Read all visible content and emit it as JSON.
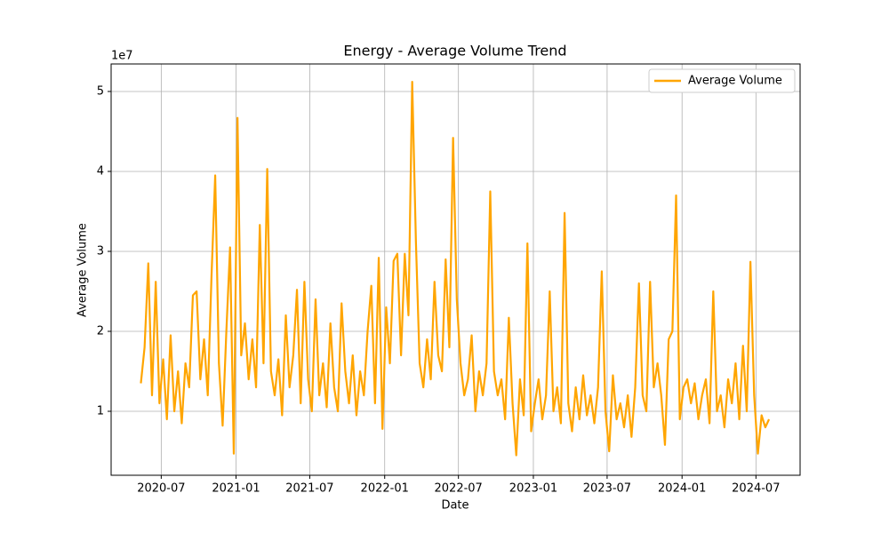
{
  "chart_data": {
    "type": "line",
    "title": "Energy - Average Volume Trend",
    "x_label": "Date",
    "y_label": "Average Volume",
    "y_scale_label": "1e7",
    "x": [
      2020.36,
      2020.385,
      2020.41,
      2020.435,
      2020.46,
      2020.485,
      2020.51,
      2020.535,
      2020.56,
      2020.585,
      2020.61,
      2020.635,
      2020.66,
      2020.685,
      2020.71,
      2020.735,
      2020.76,
      2020.785,
      2020.81,
      2020.835,
      2020.86,
      2020.885,
      2020.91,
      2020.935,
      2020.96,
      2020.985,
      2021.01,
      2021.035,
      2021.06,
      2021.085,
      2021.11,
      2021.135,
      2021.16,
      2021.185,
      2021.21,
      2021.235,
      2021.26,
      2021.285,
      2021.31,
      2021.335,
      2021.36,
      2021.385,
      2021.41,
      2021.435,
      2021.46,
      2021.485,
      2021.51,
      2021.535,
      2021.56,
      2021.585,
      2021.61,
      2021.635,
      2021.66,
      2021.685,
      2021.71,
      2021.735,
      2021.76,
      2021.785,
      2021.81,
      2021.835,
      2021.86,
      2021.885,
      2021.91,
      2021.935,
      2021.96,
      2021.985,
      2022.01,
      2022.035,
      2022.06,
      2022.085,
      2022.11,
      2022.135,
      2022.16,
      2022.185,
      2022.21,
      2022.235,
      2022.26,
      2022.285,
      2022.31,
      2022.335,
      2022.36,
      2022.385,
      2022.41,
      2022.435,
      2022.46,
      2022.485,
      2022.51,
      2022.535,
      2022.56,
      2022.585,
      2022.61,
      2022.635,
      2022.66,
      2022.685,
      2022.71,
      2022.735,
      2022.76,
      2022.785,
      2022.81,
      2022.835,
      2022.86,
      2022.885,
      2022.91,
      2022.935,
      2022.96,
      2022.985,
      2023.01,
      2023.035,
      2023.06,
      2023.085,
      2023.11,
      2023.135,
      2023.16,
      2023.185,
      2023.21,
      2023.235,
      2023.26,
      2023.285,
      2023.31,
      2023.335,
      2023.36,
      2023.385,
      2023.41,
      2023.435,
      2023.46,
      2023.485,
      2023.51,
      2023.535,
      2023.56,
      2023.585,
      2023.61,
      2023.635,
      2023.66,
      2023.685,
      2023.71,
      2023.735,
      2023.76,
      2023.785,
      2023.81,
      2023.835,
      2023.86,
      2023.885,
      2023.91,
      2023.935,
      2023.96,
      2023.985,
      2024.01,
      2024.035,
      2024.06,
      2024.085,
      2024.11,
      2024.135,
      2024.16,
      2024.185,
      2024.21,
      2024.235,
      2024.26,
      2024.285,
      2024.31,
      2024.335,
      2024.36,
      2024.385,
      2024.41,
      2024.435,
      2024.46,
      2024.485,
      2024.51,
      2024.535,
      2024.56,
      2024.585
    ],
    "series": [
      {
        "name": "Average Volume",
        "color": "orange",
        "values": [
          1.35,
          1.8,
          2.85,
          1.2,
          2.62,
          1.1,
          1.65,
          0.9,
          1.95,
          1.0,
          1.5,
          0.85,
          1.6,
          1.3,
          2.45,
          2.5,
          1.4,
          1.9,
          1.2,
          2.68,
          3.95,
          1.6,
          0.82,
          2.0,
          3.05,
          0.47,
          4.67,
          1.7,
          2.1,
          1.4,
          1.9,
          1.3,
          3.33,
          1.6,
          4.03,
          1.5,
          1.2,
          1.65,
          0.95,
          2.2,
          1.3,
          1.7,
          2.52,
          1.1,
          2.62,
          1.4,
          1.0,
          2.4,
          1.2,
          1.6,
          1.05,
          2.1,
          1.3,
          1.0,
          2.35,
          1.5,
          1.1,
          1.7,
          0.95,
          1.5,
          1.2,
          2.0,
          2.57,
          1.1,
          2.92,
          0.78,
          2.3,
          1.6,
          2.88,
          2.97,
          1.7,
          2.97,
          2.2,
          5.12,
          3.12,
          1.6,
          1.3,
          1.9,
          1.4,
          2.62,
          1.7,
          1.5,
          2.9,
          1.8,
          4.42,
          2.4,
          1.6,
          1.2,
          1.4,
          1.95,
          1.0,
          1.5,
          1.2,
          1.6,
          3.75,
          1.5,
          1.2,
          1.4,
          0.9,
          2.17,
          1.1,
          0.45,
          1.4,
          0.95,
          3.1,
          0.75,
          1.1,
          1.4,
          0.9,
          1.2,
          2.5,
          1.0,
          1.3,
          0.85,
          3.48,
          1.1,
          0.75,
          1.3,
          0.9,
          1.45,
          0.95,
          1.2,
          0.85,
          1.3,
          2.75,
          1.0,
          0.5,
          1.45,
          0.9,
          1.1,
          0.8,
          1.2,
          0.68,
          1.3,
          2.6,
          1.2,
          1.0,
          2.62,
          1.3,
          1.6,
          1.2,
          0.58,
          1.9,
          2.0,
          3.7,
          0.9,
          1.3,
          1.4,
          1.1,
          1.35,
          0.9,
          1.2,
          1.4,
          0.85,
          2.5,
          1.0,
          1.2,
          0.8,
          1.4,
          1.1,
          1.6,
          0.9,
          1.82,
          1.0,
          2.87,
          1.2,
          0.47,
          0.95,
          0.8,
          0.9
        ]
      }
    ],
    "xlim": [
      2020.16,
      2024.794
    ],
    "xticks": [
      {
        "value": 2020.497,
        "label": "2020-07"
      },
      {
        "value": 2021.0,
        "label": "2021-01"
      },
      {
        "value": 2021.496,
        "label": "2021-07"
      },
      {
        "value": 2022.0,
        "label": "2022-01"
      },
      {
        "value": 2022.496,
        "label": "2022-07"
      },
      {
        "value": 2023.0,
        "label": "2023-01"
      },
      {
        "value": 2023.496,
        "label": "2023-07"
      },
      {
        "value": 2024.0,
        "label": "2024-01"
      },
      {
        "value": 2024.497,
        "label": "2024-07"
      }
    ],
    "ylim": [
      0.2,
      5.344
    ],
    "yticks": [
      1,
      2,
      3,
      4,
      5
    ],
    "grid": true,
    "legend": "upper right"
  }
}
